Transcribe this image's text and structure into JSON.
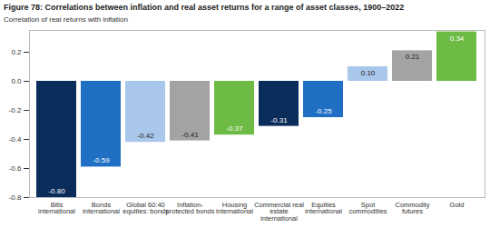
{
  "chart_data": {
    "type": "bar",
    "title": "Figure 78: Correlations between inflation and real asset returns for a range of asset classes, 1900–2022",
    "y_label": "Correlation of real returns with inflation",
    "categories": [
      "Bills international",
      "Bonds international",
      "Global 60:40 equities: bonds",
      "Inflation-protected bonds",
      "Housing international",
      "Commercial real estate international",
      "Equities international",
      "Spot commodities",
      "Commodity futures",
      "Gold"
    ],
    "values": [
      -0.8,
      -0.59,
      -0.42,
      -0.41,
      -0.37,
      -0.31,
      -0.25,
      0.1,
      0.21,
      0.34
    ],
    "value_labels": [
      "-0.80",
      "-0.59",
      "-0.42",
      "-0.41",
      "-0.37",
      "-0.31",
      "-0.25",
      "0.10",
      "0.21",
      "0.34"
    ],
    "colors": [
      "#0b2d5b",
      "#1f6fc5",
      "#a9c7ea",
      "#a3a3a3",
      "#6dbb45",
      "#0b2d5b",
      "#1f6fc5",
      "#a9c7ea",
      "#a3a3a3",
      "#6dbb45"
    ],
    "ylim": [
      -0.8,
      0.35
    ],
    "yticks": [
      -0.8,
      -0.6,
      -0.4,
      -0.2,
      {
        "value": 0,
        "label": "0.0"
      },
      0.2
    ],
    "grid": false,
    "data_labels": true
  }
}
